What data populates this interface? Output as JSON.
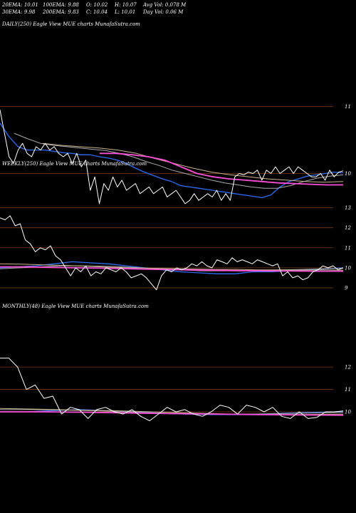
{
  "header": {
    "ema20": "20EMA: 10.01",
    "ema100": "100EMA: 9.88",
    "open": "O: 10.02",
    "high": "H: 10.07",
    "avgvol": "Avg Vol: 0.078  M",
    "ema30": "30EMA: 9.98",
    "ema200": "200EMA: 9.83",
    "close": "C: 10.04",
    "low": "L: 10.01",
    "dayvol": "Day Vol: 0.06  M"
  },
  "colors": {
    "background": "#000000",
    "price": "#ffffff",
    "ema_blue": "#2f6cf5",
    "ema_magenta": "#ff4fd8",
    "ema_tan": "#c8b48c",
    "ema_gray": "#aaaaaa",
    "grid": "#7a3a12"
  },
  "panels": [
    {
      "label": "DAILY(250) Eagle  View  MUE charts MunafaSutra.com",
      "ylim": [
        9.4,
        11.1
      ],
      "ticks": [
        "11",
        "10"
      ],
      "tick_values": [
        11,
        10
      ]
    },
    {
      "label": "WEEKLY(250) Eagle  View  MUE charts MunafaSutra.com",
      "ylim": [
        8.5,
        13.2
      ],
      "ticks": [
        "13",
        "12",
        "11",
        "10",
        "9"
      ],
      "tick_values": [
        13,
        12,
        11,
        10,
        9
      ]
    },
    {
      "label": "MONTHLY(48) Eagle  View  MUE charts MunafaSutra.com",
      "ylim": [
        9.3,
        12.8
      ],
      "ticks": [
        "12",
        "11",
        "10"
      ],
      "tick_values": [
        12,
        11,
        10
      ]
    }
  ],
  "chart_data": [
    {
      "type": "line",
      "title": "DAILY(250) Eagle  View  MUE charts MunafaSutra.com",
      "ylim": [
        9.4,
        11.1
      ],
      "series": [
        {
          "role": "price",
          "values": [
            10.95,
            10.6,
            10.25,
            10.15,
            10.35,
            10.45,
            10.3,
            10.25,
            10.4,
            10.35,
            10.45,
            10.35,
            10.4,
            10.3,
            10.25,
            10.3,
            10.15,
            10.3,
            10.1,
            10.2,
            9.75,
            9.95,
            9.55,
            9.85,
            9.75,
            9.95,
            9.8,
            9.9,
            9.75,
            9.8,
            9.85,
            9.7,
            9.75,
            9.8,
            9.7,
            9.75,
            9.8,
            9.65,
            9.7,
            9.75,
            9.65,
            9.55,
            9.6,
            9.7,
            9.6,
            9.65,
            9.7,
            9.65,
            9.75,
            9.6,
            9.7,
            9.6,
            9.95,
            10.0,
            9.98,
            10.02,
            10.0,
            10.05,
            9.9,
            10.05,
            10.0,
            10.1,
            10.0,
            10.05,
            10.1,
            10.0,
            10.1,
            10.05,
            10.0,
            9.95,
            9.95,
            10.0,
            9.9,
            10.05,
            9.95,
            10.02,
            10.04
          ]
        },
        {
          "role": "ema",
          "values": [
            10.75,
            10.55,
            10.4,
            10.35,
            10.35,
            10.35,
            10.33,
            10.31,
            10.3,
            10.28,
            10.28,
            10.25,
            10.23,
            10.2,
            10.15,
            10.08,
            10.02,
            9.97,
            9.92,
            9.88,
            9.82,
            9.8,
            9.78,
            9.76,
            9.74,
            9.72,
            9.7,
            9.68,
            9.66,
            9.64,
            9.68,
            9.8,
            9.88,
            9.92,
            9.96,
            9.98,
            10.0,
            10.02,
            10.01
          ]
        },
        {
          "role": "ema",
          "values": [
            10.6,
            10.52,
            10.45,
            10.42,
            10.4,
            10.38,
            10.36,
            10.34,
            10.3,
            10.25,
            10.18,
            10.12,
            10.05,
            10.0,
            9.95,
            9.9,
            9.86,
            9.83,
            9.8,
            9.78,
            9.78,
            9.82,
            9.88,
            9.93,
            9.96,
            9.98
          ]
        },
        {
          "role": "ema",
          "values": [
            10.45,
            10.42,
            10.4,
            10.38,
            10.35,
            10.3,
            10.22,
            10.15,
            10.08,
            10.02,
            9.98,
            9.95,
            9.92,
            9.9,
            9.88,
            9.87,
            9.88
          ]
        },
        {
          "role": "ema",
          "values": [
            10.3,
            10.3,
            10.28,
            10.25,
            10.2,
            10.1,
            10.0,
            9.95,
            9.92,
            9.9,
            9.88,
            9.86,
            9.85,
            9.84,
            9.83,
            9.83
          ]
        }
      ]
    },
    {
      "type": "line",
      "title": "WEEKLY(250) Eagle  View  MUE charts MunafaSutra.com",
      "ylim": [
        8.5,
        13.2
      ],
      "series": [
        {
          "role": "price",
          "values": [
            12.5,
            12.4,
            12.6,
            12.1,
            12.2,
            11.4,
            11.2,
            10.8,
            11.0,
            10.9,
            11.1,
            10.6,
            10.4,
            10.0,
            9.6,
            10.0,
            9.8,
            10.1,
            9.6,
            9.8,
            9.7,
            10.0,
            9.9,
            9.8,
            10.0,
            9.8,
            9.5,
            9.6,
            9.7,
            9.5,
            9.2,
            8.9,
            9.6,
            9.9,
            9.8,
            10.0,
            9.9,
            10.0,
            10.2,
            10.1,
            10.3,
            10.1,
            10.0,
            10.4,
            10.3,
            10.2,
            10.5,
            10.3,
            10.4,
            10.3,
            10.2,
            10.4,
            10.3,
            10.2,
            10.1,
            10.2,
            9.6,
            9.8,
            9.5,
            9.6,
            9.4,
            9.5,
            9.8,
            9.9,
            10.1,
            10.0,
            10.1,
            9.9,
            10.0
          ]
        },
        {
          "role": "ema",
          "values": [
            10.0,
            10.05,
            10.1,
            10.2,
            10.3,
            10.25,
            10.2,
            10.1,
            10.0,
            9.9,
            9.8,
            9.75,
            9.7,
            9.7,
            9.8,
            9.8,
            9.85,
            9.9,
            9.95,
            10.0
          ]
        },
        {
          "role": "ema",
          "values": [
            9.95,
            10.0,
            10.05,
            10.1,
            10.1,
            10.08,
            10.05,
            10.0,
            9.95,
            9.9,
            9.85,
            9.85,
            9.85,
            9.88,
            9.9,
            9.92,
            9.95,
            9.98
          ]
        },
        {
          "role": "ema",
          "values": [
            10.2,
            10.18,
            10.15,
            10.12,
            10.08,
            10.03,
            10.0,
            9.98,
            9.96,
            9.94,
            9.92,
            9.92,
            9.9,
            9.9,
            9.88,
            9.9,
            9.88
          ]
        },
        {
          "role": "ema",
          "values": [
            10.05,
            10.05,
            10.02,
            10.0,
            9.98,
            9.95,
            9.92,
            9.9,
            9.88,
            9.86,
            9.85,
            9.84,
            9.83,
            9.83
          ]
        }
      ]
    },
    {
      "type": "line",
      "title": "MONTHLY(48) Eagle  View  MUE charts MunafaSutra.com",
      "ylim": [
        9.3,
        12.8
      ],
      "series": [
        {
          "role": "price",
          "values": [
            12.4,
            12.4,
            12.0,
            11.0,
            11.2,
            10.6,
            10.7,
            9.9,
            10.2,
            10.1,
            9.7,
            10.1,
            10.2,
            10.0,
            9.9,
            10.1,
            9.8,
            9.6,
            9.9,
            10.2,
            10.0,
            10.1,
            9.9,
            9.8,
            10.0,
            10.3,
            10.2,
            9.9,
            10.3,
            10.2,
            10.0,
            10.2,
            9.8,
            9.7,
            10.0,
            9.7,
            9.75,
            10.0,
            10.0,
            10.04
          ]
        },
        {
          "role": "ema",
          "values": [
            10.0,
            10.0,
            10.05,
            10.1,
            10.05,
            10.0,
            9.95,
            9.9,
            9.88,
            9.88,
            9.9,
            9.95,
            9.98,
            10.0
          ]
        },
        {
          "role": "ema",
          "values": [
            10.1,
            10.1,
            10.08,
            10.05,
            10.0,
            9.95,
            9.92,
            9.9,
            9.9,
            9.92,
            9.95,
            9.98
          ]
        },
        {
          "role": "ema",
          "values": [
            10.15,
            10.12,
            10.08,
            10.05,
            10.0,
            9.95,
            9.9,
            9.88,
            9.88,
            9.9
          ]
        },
        {
          "role": "ema",
          "values": [
            10.0,
            10.0,
            9.98,
            9.95,
            9.92,
            9.9,
            9.88,
            9.86,
            9.85
          ]
        }
      ]
    }
  ]
}
